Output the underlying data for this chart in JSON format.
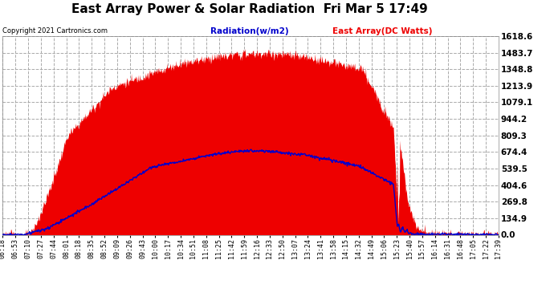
{
  "title": "East Array Power & Solar Radiation  Fri Mar 5 17:49",
  "copyright": "Copyright 2021 Cartronics.com",
  "legend_radiation": "Radiation(w/m2)",
  "legend_east": "East Array(DC Watts)",
  "y_max": 1618.6,
  "y_min": 0.0,
  "y_ticks": [
    0.0,
    134.9,
    269.8,
    404.6,
    539.5,
    674.4,
    809.3,
    944.2,
    1079.1,
    1213.9,
    1348.8,
    1483.7,
    1618.6
  ],
  "background_color": "#ffffff",
  "plot_bg_color": "#ffffff",
  "grid_color": "#aaaaaa",
  "red_color": "#ee0000",
  "blue_color": "#0000cc",
  "title_fontsize": 11,
  "time_labels": [
    "06:18",
    "06:53",
    "07:10",
    "07:27",
    "07:44",
    "08:01",
    "08:18",
    "08:35",
    "08:52",
    "09:09",
    "09:26",
    "09:43",
    "10:00",
    "10:17",
    "10:34",
    "10:51",
    "11:08",
    "11:25",
    "11:42",
    "11:59",
    "12:16",
    "12:33",
    "12:50",
    "13:07",
    "13:24",
    "13:41",
    "13:58",
    "14:15",
    "14:32",
    "14:49",
    "15:06",
    "15:23",
    "15:40",
    "15:57",
    "16:14",
    "16:31",
    "16:48",
    "17:05",
    "17:22",
    "17:39"
  ],
  "n_points": 1000
}
